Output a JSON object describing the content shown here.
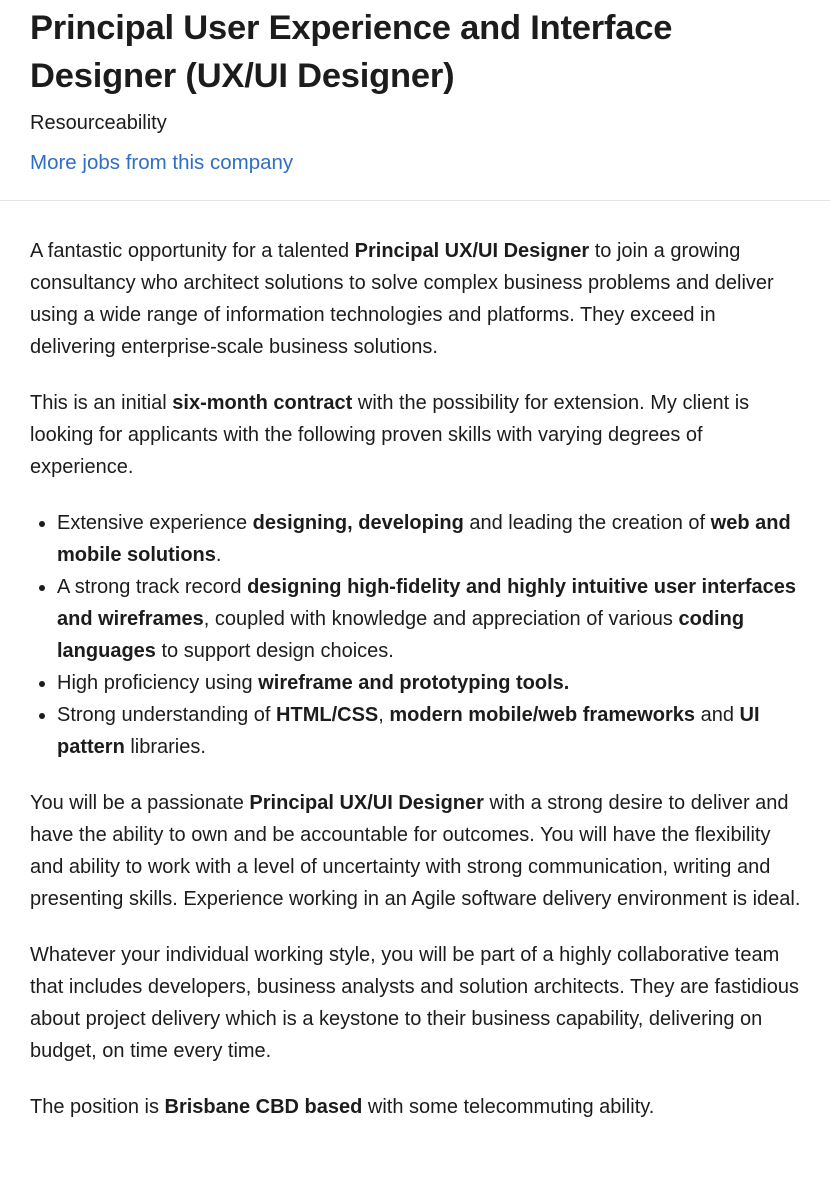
{
  "job": {
    "title": "Principal User Experience and Interface Designer (UX/UI Designer)",
    "company": "Resourceability",
    "more_jobs_link": "More jobs from this company"
  },
  "description": {
    "p1": {
      "a": "A fantastic opportunity for a talented ",
      "b": "Principal UX/UI Designer",
      "c": " to join a growing consultancy who architect solutions to solve complex business problems and deliver using a wide range of information technologies and platforms.  They exceed in delivering enterprise-scale business solutions."
    },
    "p2": {
      "a": "This is an initial ",
      "b": "six-month contract",
      "c": " with the possibility for extension.  My client is looking for applicants with the following proven skills with varying degrees of experience."
    },
    "skills": [
      {
        "a": "Extensive experience ",
        "b": "designing, developing",
        "c": " and leading the creation of ",
        "d": "web and mobile solutions",
        "e": "."
      },
      {
        "a": "A strong track record ",
        "b": "designing high-fidelity and highly intuitive user interfaces and wireframes",
        "c": ", coupled with knowledge and appreciation of various ",
        "d": "coding languages",
        "e": " to support design choices."
      },
      {
        "a": "High proficiency using ",
        "b": "wireframe and prototyping tools."
      },
      {
        "a": "Strong understanding of ",
        "b": "HTML/CSS",
        "c": ", ",
        "d": "modern mobile/web frameworks",
        "e": " and ",
        "f": "UI pattern",
        "g": " libraries."
      }
    ],
    "p3": {
      "a": "You will be a passionate ",
      "b": "Principal UX/UI Designer",
      "c": " with a strong desire to deliver and have the ability to own and be accountable for outcomes.  You will have the flexibility and ability to work with a level of uncertainty with strong communication, writing and presenting skills.  Experience working in an Agile software delivery environment is ideal."
    },
    "p4": "Whatever your individual working style, you will be part of a highly collaborative team that includes developers, business analysts and solution architects.  They are fastidious about project delivery which is a keystone to their business capability, delivering on budget, on time every time.",
    "p5": {
      "a": "The position is ",
      "b": "Brisbane CBD based",
      "c": " with some telecommuting ability."
    }
  },
  "colors": {
    "link": "#2e6ec4",
    "text": "#1c1c1c",
    "divider": "#e3e3e3"
  }
}
